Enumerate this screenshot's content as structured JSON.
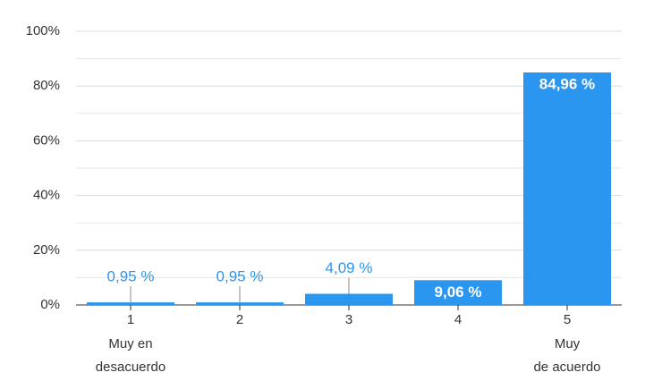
{
  "chart_data": {
    "type": "bar",
    "categories": [
      "1",
      "2",
      "3",
      "4",
      "5"
    ],
    "category_notes": [
      [
        "Muy en",
        "desacuerdo"
      ],
      null,
      null,
      null,
      [
        "Muy",
        "de acuerdo"
      ]
    ],
    "values": [
      0.95,
      0.95,
      4.09,
      9.06,
      84.96
    ],
    "value_labels": [
      "0,95 %",
      "0,95 %",
      "4,09 %",
      "9,06 %",
      "84,96 %"
    ],
    "color": "#2b96f0",
    "ylim": [
      0,
      100
    ],
    "yticks": [
      {
        "value": 0,
        "label": "0%"
      },
      {
        "value": 20,
        "label": "20%"
      },
      {
        "value": 40,
        "label": "40%"
      },
      {
        "value": 60,
        "label": "60%"
      },
      {
        "value": 80,
        "label": "80%"
      },
      {
        "value": 100,
        "label": "100%"
      }
    ],
    "minor_yticks": [
      10,
      30,
      50,
      70,
      90
    ],
    "grid": true
  }
}
